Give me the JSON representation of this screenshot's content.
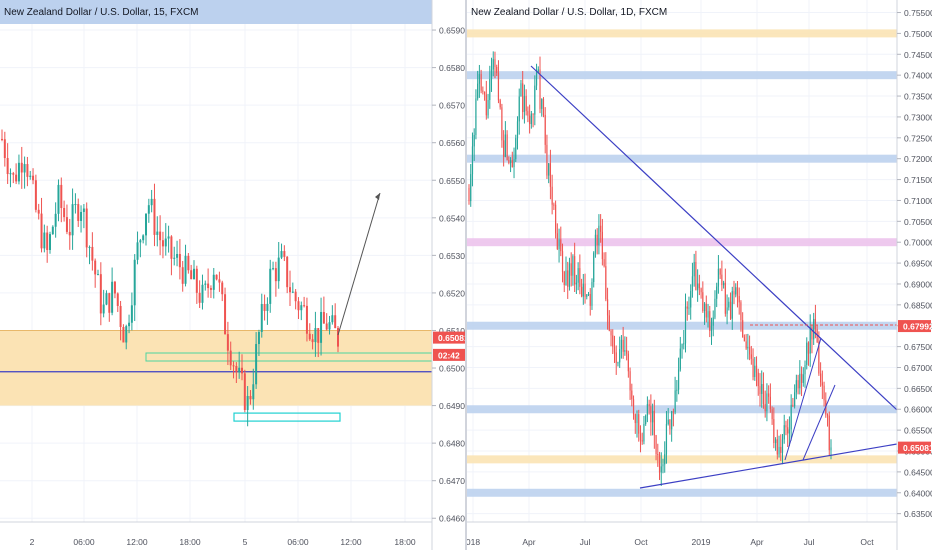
{
  "colors": {
    "up": "#26a69a",
    "down": "#ef5350",
    "zone_orange": "#fbe3b4",
    "zone_blue": "#bcd1ee",
    "zone_pink": "#ecc3ec",
    "trendline": "#3c3fc4",
    "price_tag": "#ef5350"
  },
  "chart_data": [
    {
      "type": "candlestick",
      "title": "New Zealand Dollar / U.S. Dollar, 15, FXCM",
      "ylim": [
        0.6459,
        0.6598
      ],
      "y_ticks": [
        "0.65900",
        "0.65800",
        "0.65700",
        "0.65600",
        "0.65500",
        "0.65400",
        "0.65300",
        "0.65200",
        "0.65100",
        "0.65000",
        "0.64900",
        "0.64800",
        "0.64700",
        "0.64600"
      ],
      "x_ticks": [
        "2",
        "06:00",
        "12:00",
        "18:00",
        "5",
        "06:00",
        "12:00",
        "18:00"
      ],
      "current_price": "0.65081",
      "countdown": "02:42",
      "zones": [
        {
          "from": 0.649,
          "to": 0.651,
          "color": "orange"
        },
        {
          "from": 0.6503,
          "to": 0.6504,
          "color": "green-outline"
        },
        {
          "from": 0.6486,
          "to": 0.6488,
          "color": "cyan-outline"
        }
      ],
      "horizontal_lines": [
        {
          "value": 0.6499,
          "color": "trendline"
        }
      ],
      "price_path": [
        0.6561,
        0.655,
        0.6558,
        0.6542,
        0.653,
        0.6545,
        0.6537,
        0.6545,
        0.653,
        0.6515,
        0.6521,
        0.6508,
        0.653,
        0.6545,
        0.6535,
        0.653,
        0.6527,
        0.6523,
        0.6518,
        0.6528,
        0.651,
        0.6498,
        0.649,
        0.651,
        0.6525,
        0.6528,
        0.6519,
        0.6515,
        0.6509,
        0.6512,
        0.6508
      ]
    },
    {
      "type": "candlestick",
      "title": "New Zealand Dollar / U.S. Dollar, 1D, FXCM",
      "ylim": [
        0.633,
        0.758
      ],
      "y_ticks": [
        "0.75500",
        "0.75000",
        "0.74500",
        "0.74000",
        "0.73500",
        "0.73000",
        "0.72500",
        "0.72000",
        "0.71500",
        "0.71000",
        "0.70500",
        "0.70000",
        "0.69500",
        "0.69000",
        "0.68500",
        "0.68000",
        "0.67500",
        "0.67000",
        "0.66500",
        "0.66000",
        "0.65500",
        "0.65000",
        "0.64500",
        "0.64000",
        "0.63500"
      ],
      "x_ticks": [
        "018",
        "Apr",
        "Jul",
        "Oct",
        "2019",
        "Apr",
        "Jul",
        "Oct"
      ],
      "current_price": "0.65081",
      "marked_price": "0.67992",
      "zones": [
        {
          "value": 0.75,
          "color": "orange"
        },
        {
          "value": 0.74,
          "color": "blue"
        },
        {
          "value": 0.72,
          "color": "blue"
        },
        {
          "value": 0.7,
          "color": "pink"
        },
        {
          "value": 0.68,
          "color": "blue"
        },
        {
          "value": 0.66,
          "color": "blue"
        },
        {
          "value": 0.648,
          "color": "orange"
        },
        {
          "value": 0.64,
          "color": "blue"
        }
      ],
      "price_path": [
        0.713,
        0.738,
        0.732,
        0.743,
        0.724,
        0.72,
        0.735,
        0.728,
        0.74,
        0.72,
        0.705,
        0.69,
        0.695,
        0.688,
        0.685,
        0.705,
        0.685,
        0.67,
        0.675,
        0.662,
        0.65,
        0.662,
        0.645,
        0.655,
        0.665,
        0.68,
        0.693,
        0.685,
        0.68,
        0.692,
        0.683,
        0.688,
        0.678,
        0.67,
        0.665,
        0.658,
        0.65,
        0.656,
        0.665,
        0.672,
        0.679,
        0.665,
        0.6508
      ]
    }
  ]
}
